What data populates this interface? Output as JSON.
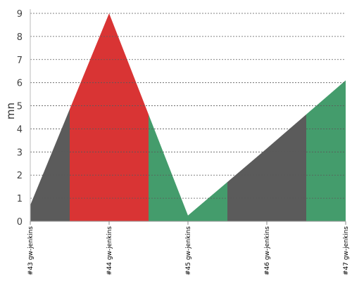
{
  "chart_data": {
    "type": "area",
    "ylabel": "mn",
    "xlabel": "",
    "ylim": [
      0,
      9
    ],
    "yticks": [
      "0",
      "1",
      "2",
      "3",
      "4",
      "5",
      "6",
      "7",
      "8",
      "9"
    ],
    "grid": true,
    "categories": [
      "#43 gw-jenkins",
      "#44 gw-jenkins",
      "#45 gw-jenkins",
      "#46 gw-jenkins",
      "#47 gw-jenkins"
    ],
    "values": [
      0.7,
      9.0,
      0.25,
      3.15,
      6.1
    ],
    "segments": [
      {
        "from": 0,
        "to": 0.5,
        "status": "unstable",
        "color": "#5b5b5b"
      },
      {
        "from": 0.5,
        "to": 1.5,
        "status": "failed",
        "color": "#d93434"
      },
      {
        "from": 1.5,
        "to": 2.5,
        "status": "success",
        "color": "#449c6c"
      },
      {
        "from": 2.5,
        "to": 3.5,
        "status": "unstable",
        "color": "#5b5b5b"
      },
      {
        "from": 3.5,
        "to": 4,
        "status": "success",
        "color": "#449c6c"
      }
    ]
  }
}
